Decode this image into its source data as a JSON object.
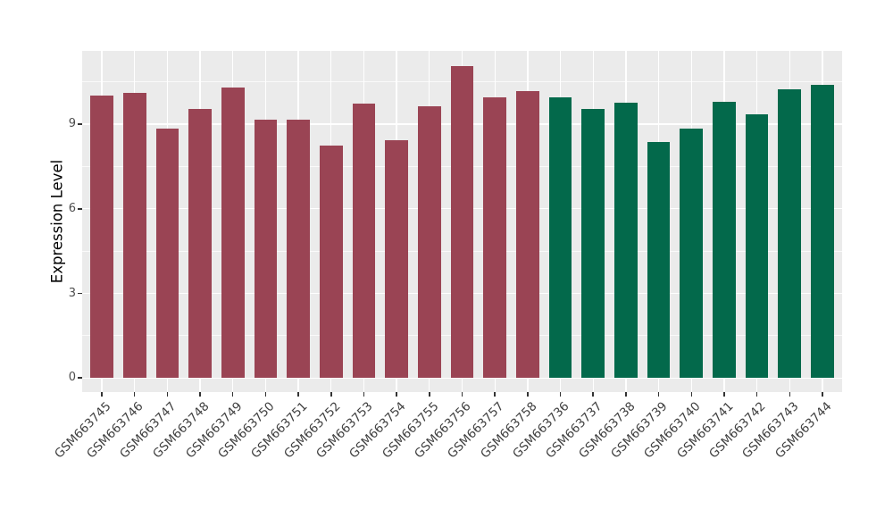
{
  "colors": {
    "panel_background": "#EBEBEB",
    "grid_major": "#FFFFFF",
    "grid_minor": "#FFFFFF",
    "tick_mark": "#333333",
    "axis_text": "#4D4D4D",
    "axis_title": "#000000",
    "group_colors": {
      "maroon": "#9A4454",
      "green": "#03694B"
    }
  },
  "chart_data": {
    "type": "bar",
    "title": "",
    "xlabel": "",
    "ylabel": "Expression Level",
    "grid": true,
    "legend": false,
    "ylim": [
      -0.5,
      11.6
    ],
    "yticks": [
      0,
      3,
      6,
      9
    ],
    "yticks_minor": [
      1.5,
      4.5,
      7.5,
      10.5
    ],
    "categories": [
      "GSM663745",
      "GSM663746",
      "GSM663747",
      "GSM663748",
      "GSM663749",
      "GSM663750",
      "GSM663751",
      "GSM663752",
      "GSM663753",
      "GSM663754",
      "GSM663755",
      "GSM663756",
      "GSM663757",
      "GSM663758",
      "GSM663736",
      "GSM663737",
      "GSM663738",
      "GSM663739",
      "GSM663740",
      "GSM663741",
      "GSM663742",
      "GSM663743",
      "GSM663744"
    ],
    "values": [
      10.02,
      10.11,
      8.86,
      9.54,
      10.31,
      9.15,
      9.15,
      8.24,
      9.72,
      8.43,
      9.65,
      11.06,
      9.94,
      10.19,
      9.94,
      9.55,
      9.75,
      8.36,
      8.85,
      9.8,
      9.34,
      10.25,
      10.39
    ],
    "bar_groups": [
      "maroon",
      "maroon",
      "maroon",
      "maroon",
      "maroon",
      "maroon",
      "maroon",
      "maroon",
      "maroon",
      "maroon",
      "maroon",
      "maroon",
      "maroon",
      "maroon",
      "green",
      "green",
      "green",
      "green",
      "green",
      "green",
      "green",
      "green",
      "green"
    ]
  }
}
